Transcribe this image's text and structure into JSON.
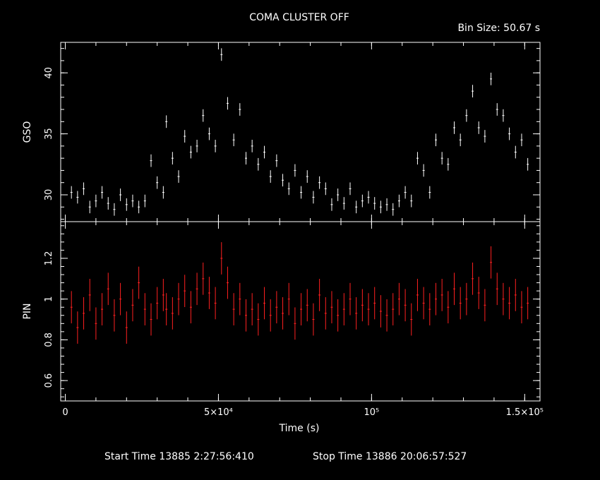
{
  "header": {
    "title": "COMA CLUSTER OFF",
    "bin_size": "Bin Size: 50.67 s"
  },
  "footer": {
    "start_time": "Start Time 13885  2:27:56:410",
    "stop_time": "Stop Time 13886 20:06:57:527"
  },
  "colors": {
    "gso": "#ffffff",
    "pin": "#ff2020",
    "axes": "#ffffff",
    "background": "#000000"
  },
  "chart_data": [
    {
      "type": "scatter",
      "panel": "top",
      "ylabel": "GSO",
      "xlabel": "",
      "xlim": [
        -1500,
        155000
      ],
      "ylim": [
        27.8,
        42.5
      ],
      "yticks": [
        30,
        35,
        40
      ],
      "yticklabels": [
        "30",
        "35",
        "40"
      ],
      "error_bars": true,
      "series": [
        {
          "x": [
            2000,
            4000,
            6000,
            8000,
            10000,
            12000,
            14000,
            16000,
            18000,
            20000,
            22000,
            24000,
            26000,
            28000,
            30000,
            32000,
            33000,
            35000,
            37000,
            39000,
            41000,
            43000,
            45000,
            47000,
            49000,
            51000,
            53000,
            55000,
            57000,
            59000,
            61000,
            63000,
            65000,
            67000,
            69000,
            71000,
            73000,
            75000,
            77000,
            79000,
            81000,
            83000,
            85000,
            87000,
            89000,
            91000,
            93000,
            95000,
            97000,
            99000,
            101000,
            103000,
            105000,
            107000,
            109000,
            111000,
            113000,
            115000,
            117000,
            119000,
            121000,
            123000,
            125000,
            127000,
            129000,
            131000,
            133000,
            135000,
            137000,
            139000,
            141000,
            143000,
            145000,
            147000,
            149000,
            151000
          ],
          "y": [
            30.2,
            29.8,
            30.5,
            29.0,
            29.5,
            30.2,
            29.3,
            28.8,
            30.0,
            29.2,
            29.5,
            29.0,
            29.5,
            32.8,
            31.0,
            30.2,
            36.0,
            33.0,
            31.5,
            34.8,
            33.5,
            34.0,
            36.5,
            35.0,
            34.0,
            41.5,
            37.5,
            34.5,
            37.0,
            33.0,
            34.0,
            32.5,
            33.5,
            31.5,
            32.8,
            31.2,
            30.5,
            32.0,
            30.2,
            31.5,
            29.8,
            31.0,
            30.5,
            29.2,
            30.0,
            29.3,
            30.5,
            29.0,
            29.5,
            29.8,
            29.3,
            29.0,
            29.2,
            28.8,
            29.5,
            30.2,
            29.5,
            33.0,
            32.0,
            30.2,
            34.5,
            33.0,
            32.5,
            35.5,
            34.5,
            36.5,
            38.5,
            35.5,
            34.8,
            39.5,
            37.0,
            36.5,
            35.0,
            33.5,
            34.5,
            32.5
          ]
        }
      ]
    },
    {
      "type": "scatter",
      "panel": "bottom",
      "ylabel": "PIN",
      "xlabel": "Time (s)",
      "xlim": [
        -1500,
        155000
      ],
      "ylim": [
        0.5,
        1.38
      ],
      "yticks": [
        0.6,
        0.8,
        1,
        1.2
      ],
      "yticklabels": [
        "0.6",
        "0.8",
        "1",
        "1.2"
      ],
      "xticks": [
        0,
        50000,
        100000,
        150000
      ],
      "xticklabels": [
        "0",
        "5×10⁴",
        "10⁵",
        "1.5×10⁵"
      ],
      "error_bars": true,
      "series": [
        {
          "x": [
            2000,
            4000,
            6000,
            8000,
            10000,
            12000,
            14000,
            16000,
            18000,
            20000,
            22000,
            24000,
            26000,
            28000,
            30000,
            32000,
            33000,
            35000,
            37000,
            39000,
            41000,
            43000,
            45000,
            47000,
            49000,
            51000,
            53000,
            55000,
            57000,
            59000,
            61000,
            63000,
            65000,
            67000,
            69000,
            71000,
            73000,
            75000,
            77000,
            79000,
            81000,
            83000,
            85000,
            87000,
            89000,
            91000,
            93000,
            95000,
            97000,
            99000,
            101000,
            103000,
            105000,
            107000,
            109000,
            111000,
            113000,
            115000,
            117000,
            119000,
            121000,
            123000,
            125000,
            127000,
            129000,
            131000,
            133000,
            135000,
            137000,
            139000,
            141000,
            143000,
            145000,
            147000,
            149000,
            151000
          ],
          "y": [
            0.96,
            0.86,
            0.93,
            1.02,
            0.88,
            0.95,
            1.05,
            0.92,
            1.0,
            0.86,
            0.97,
            1.08,
            0.95,
            0.9,
            0.98,
            1.02,
            0.95,
            0.93,
            1.0,
            1.04,
            0.96,
            1.05,
            1.1,
            1.03,
            0.98,
            1.2,
            1.08,
            0.95,
            1.0,
            0.92,
            0.95,
            0.9,
            0.98,
            0.92,
            0.96,
            0.93,
            1.0,
            0.88,
            0.95,
            0.97,
            0.9,
            1.02,
            0.93,
            0.96,
            0.92,
            0.95,
            1.0,
            0.93,
            0.97,
            0.95,
            0.98,
            0.94,
            0.92,
            0.95,
            1.0,
            0.97,
            0.9,
            1.02,
            0.98,
            0.95,
            1.0,
            1.02,
            0.96,
            1.05,
            0.98,
            1.0,
            1.1,
            1.03,
            0.97,
            1.18,
            1.05,
            1.0,
            0.98,
            1.02,
            0.96,
            0.98
          ]
        }
      ]
    }
  ]
}
